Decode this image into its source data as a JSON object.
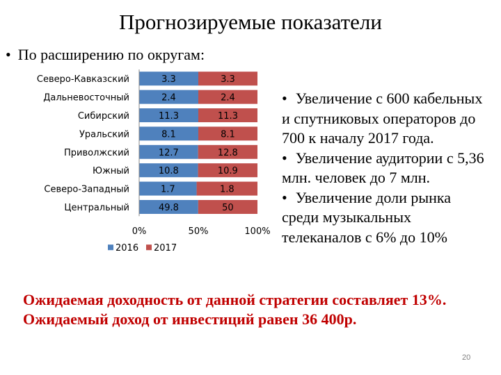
{
  "slide": {
    "title": "Прогнозируемые показатели",
    "bullet_marker": "•",
    "intro": "По расширению по округам:",
    "right_bullets": [
      "Увеличение с 600 кабельных и спутниковых операторов до 700 к началу 2017 года.",
      "Увеличение аудитории с 5,36 млн. человек до 7 млн.",
      "Увеличение доли рынка среди музыкальных телеканалов с 6% до 10%"
    ],
    "conclusion": [
      "Ожидаемая доходность от данной стратегии составляет 13%.",
      "Ожидаемый доход от инвестиций равен 36 400р."
    ],
    "page_number": "20"
  },
  "chart_data": {
    "type": "bar",
    "orientation": "horizontal",
    "stacking": "percent",
    "categories": [
      "Северо-Кавказский",
      "Дальневосточный",
      "Сибирский",
      "Уральский",
      "Приволжский",
      "Южный",
      "Северо-Западный",
      "Центральный"
    ],
    "series": [
      {
        "name": "2016",
        "color": "#4f81bd",
        "values": [
          3.3,
          2.4,
          11.3,
          8.1,
          12.7,
          10.8,
          1.7,
          49.8
        ],
        "labels": [
          "3.3",
          "2.4",
          "11.3",
          "8.1",
          "12.7",
          "10.8",
          "1.7",
          "49.8"
        ]
      },
      {
        "name": "2017",
        "color": "#c0504d",
        "values": [
          3.3,
          2.4,
          11.3,
          8.1,
          12.8,
          10.9,
          1.8,
          50
        ],
        "labels": [
          "3.3",
          "2.4",
          "11.3",
          "8.1",
          "12.8",
          "10.9",
          "1.8",
          "50"
        ]
      }
    ],
    "x_ticks": [
      "0%",
      "50%",
      "100%"
    ],
    "legend_position": "bottom-left",
    "grid": false
  }
}
